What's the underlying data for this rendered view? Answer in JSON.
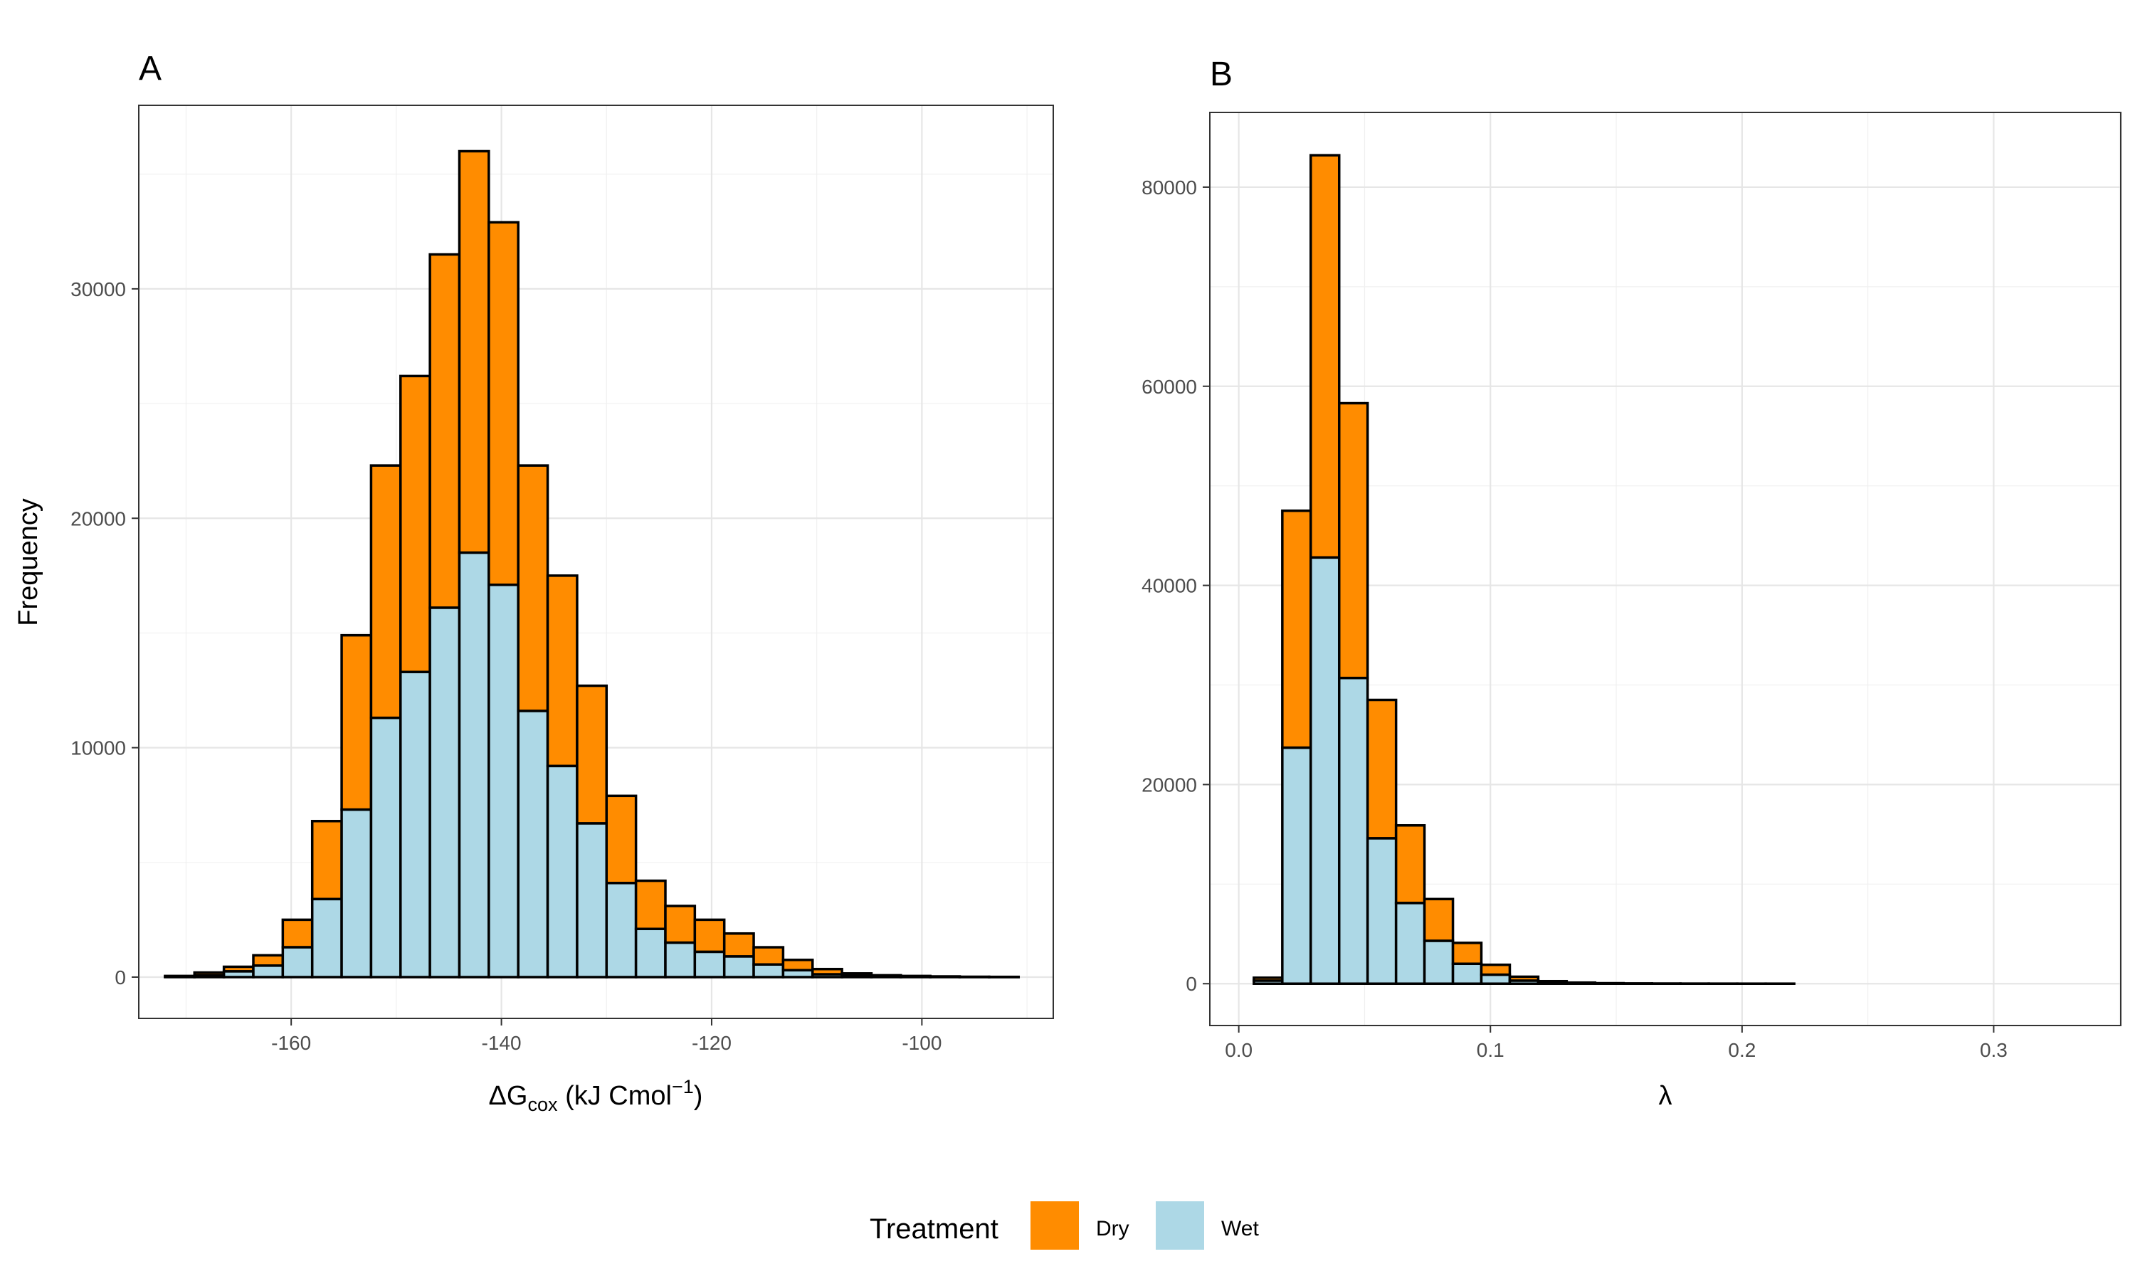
{
  "legend": {
    "title": "Treatment",
    "items": [
      {
        "label": "Dry",
        "color": "#FF8C00"
      },
      {
        "label": "Wet",
        "color": "#ADD8E6"
      }
    ]
  },
  "chart_data": [
    {
      "type": "bar",
      "stacked": true,
      "panel_tag": "A",
      "xlabel": "ΔG",
      "xlabel_sub": "cox",
      "xlabel_rest": " (kJ Cmol",
      "xlabel_sup": "−1",
      "xlabel_close": ")",
      "ylabel": "Frequency",
      "xlim": [
        -174.5,
        -87.5
      ],
      "ylim": [
        -1800,
        38000
      ],
      "x_ticks": [
        -160,
        -140,
        -120,
        -100
      ],
      "x_tick_labels": [
        "-160",
        "-140",
        "-120",
        "-100"
      ],
      "y_ticks": [
        0,
        10000,
        20000,
        30000
      ],
      "y_tick_labels": [
        "0",
        "10000",
        "20000",
        "30000"
      ],
      "grid": true,
      "bin_edges": [
        -172,
        -169.2,
        -166.4,
        -163.6,
        -160.8,
        -158,
        -155.2,
        -152.4,
        -149.6,
        -146.8,
        -144,
        -141.2,
        -138.4,
        -135.6,
        -132.8,
        -130,
        -127.2,
        -124.4,
        -121.6,
        -118.8,
        -116,
        -113.2,
        -110.4,
        -107.6,
        -104.8,
        -102,
        -99.2,
        -96.4,
        -93.6,
        -90.8
      ],
      "series": [
        {
          "name": "Wet",
          "color": "#ADD8E6",
          "values": [
            20,
            80,
            250,
            500,
            1300,
            3400,
            7300,
            11300,
            13300,
            16100,
            18500,
            17100,
            11600,
            9200,
            6700,
            4100,
            2100,
            1500,
            1100,
            900,
            550,
            300,
            120,
            50,
            25,
            15,
            10,
            5,
            3
          ]
        },
        {
          "name": "Dry",
          "color": "#FF8C00",
          "values": [
            30,
            120,
            200,
            450,
            1200,
            3400,
            7600,
            11000,
            12900,
            15400,
            17500,
            15800,
            10700,
            8300,
            6000,
            3800,
            2100,
            1600,
            1400,
            1000,
            750,
            450,
            230,
            110,
            55,
            35,
            20,
            10,
            7
          ]
        }
      ]
    },
    {
      "type": "bar",
      "stacked": true,
      "panel_tag": "B",
      "xlabel": "λ",
      "ylabel": "",
      "xlim": [
        -0.0115,
        0.3505
      ],
      "ylim": [
        -4200,
        87500
      ],
      "x_ticks": [
        0.0,
        0.1,
        0.2,
        0.3
      ],
      "x_tick_labels": [
        "0.0",
        "0.1",
        "0.2",
        "0.3"
      ],
      "y_ticks": [
        0,
        20000,
        40000,
        60000,
        80000
      ],
      "y_tick_labels": [
        "0",
        "20000",
        "40000",
        "60000",
        "80000"
      ],
      "grid": true,
      "bin_edges": [
        0.006,
        0.0173,
        0.0286,
        0.0399,
        0.0512,
        0.0625,
        0.0738,
        0.0851,
        0.0964,
        0.1077,
        0.119,
        0.1303,
        0.1416,
        0.1529,
        0.1642,
        0.1755,
        0.1868,
        0.1981,
        0.2094,
        0.2207,
        0.232,
        0.2433,
        0.2546,
        0.2659,
        0.2772,
        0.2885,
        0.2998,
        0.3111,
        0.3224,
        0.3337
      ],
      "series": [
        {
          "name": "Wet",
          "color": "#ADD8E6",
          "values": [
            300,
            23700,
            42800,
            30700,
            14600,
            8100,
            4300,
            2000,
            900,
            300,
            100,
            50,
            20,
            10,
            5,
            3,
            2,
            1,
            1,
            0,
            0,
            0,
            0,
            0,
            0,
            0,
            0,
            0,
            0
          ]
        },
        {
          "name": "Dry",
          "color": "#FF8C00",
          "values": [
            300,
            23800,
            40400,
            27600,
            13900,
            7800,
            4200,
            2100,
            1000,
            400,
            150,
            60,
            30,
            15,
            8,
            4,
            2,
            1,
            1,
            0,
            0,
            0,
            0,
            0,
            0,
            0,
            0,
            0,
            0
          ]
        }
      ]
    }
  ]
}
